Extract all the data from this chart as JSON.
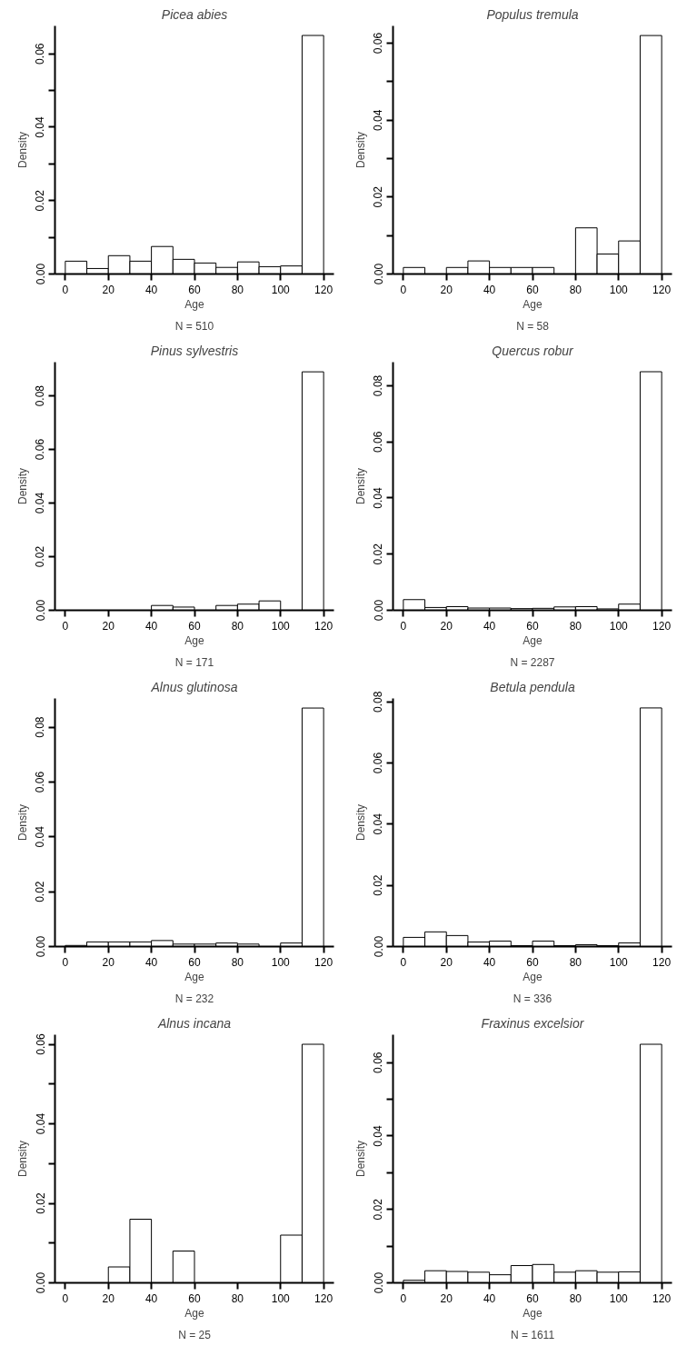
{
  "chart_data": [
    {
      "type": "histogram",
      "title": "Picea abies",
      "xlabel": "Age",
      "ylabel": "Density",
      "subtitle": "N = 510",
      "bins": [
        0,
        10,
        20,
        30,
        40,
        50,
        60,
        70,
        80,
        90,
        100,
        110,
        120
      ],
      "values": [
        0.0035,
        0.0015,
        0.005,
        0.0035,
        0.0075,
        0.004,
        0.003,
        0.0018,
        0.0033,
        0.002,
        0.0022,
        0.065
      ],
      "color": "#ffffff",
      "xlim": [
        -4.8,
        124.8
      ],
      "ylim": [
        0,
        0.0676
      ],
      "xticks": [
        0,
        20,
        40,
        60,
        80,
        100,
        120
      ],
      "yticks": [
        {
          "value": 0,
          "label": "0.00"
        },
        {
          "value": 0.01,
          "label": null
        },
        0.02,
        {
          "value": 0.03,
          "label": null
        },
        0.04,
        {
          "value": 0.05,
          "label": null
        },
        0.06
      ],
      "grid": false
    },
    {
      "type": "histogram",
      "title": "Populus tremula",
      "xlabel": "Age",
      "ylabel": "Density",
      "subtitle": "N = 58",
      "bins": [
        0,
        10,
        20,
        30,
        40,
        50,
        60,
        70,
        80,
        90,
        100,
        110,
        120
      ],
      "values": [
        0.0017,
        0,
        0.0017,
        0.0034,
        0.0017,
        0.0017,
        0.0017,
        0,
        0.012,
        0.0052,
        0.0086,
        0.062
      ],
      "color": "#ffffff",
      "xlim": [
        -4.8,
        124.8
      ],
      "ylim": [
        0,
        0.0645
      ],
      "xticks": [
        0,
        20,
        40,
        60,
        80,
        100,
        120
      ],
      "yticks": [
        {
          "value": 0,
          "label": "0.00"
        },
        {
          "value": 0.01,
          "label": null
        },
        0.02,
        {
          "value": 0.03,
          "label": null
        },
        0.04,
        {
          "value": 0.05,
          "label": null
        },
        0.06
      ],
      "grid": false
    },
    {
      "type": "histogram",
      "title": "Pinus sylvestris",
      "xlabel": "Age",
      "ylabel": "Density",
      "subtitle": "N = 171",
      "bins": [
        0,
        10,
        20,
        30,
        40,
        50,
        60,
        70,
        80,
        90,
        100,
        110,
        120
      ],
      "values": [
        0,
        0,
        0,
        0,
        0.0018,
        0.0012,
        0,
        0.0018,
        0.0023,
        0.0035,
        0,
        0.089
      ],
      "color": "#ffffff",
      "xlim": [
        -4.8,
        124.8
      ],
      "ylim": [
        0,
        0.0926
      ],
      "xticks": [
        0,
        20,
        40,
        60,
        80,
        100,
        120
      ],
      "yticks": [
        {
          "value": 0,
          "label": "0.00"
        },
        0.02,
        0.04,
        0.06,
        0.08
      ],
      "grid": false
    },
    {
      "type": "histogram",
      "title": "Quercus robur",
      "xlabel": "Age",
      "ylabel": "Density",
      "subtitle": "N = 2287",
      "bins": [
        0,
        10,
        20,
        30,
        40,
        50,
        60,
        70,
        80,
        90,
        100,
        110,
        120
      ],
      "values": [
        0.0038,
        0.001,
        0.0013,
        0.0008,
        0.0008,
        0.0006,
        0.0007,
        0.0012,
        0.0013,
        0.0005,
        0.0022,
        0.085
      ],
      "color": "#ffffff",
      "xlim": [
        -4.8,
        124.8
      ],
      "ylim": [
        0,
        0.0884
      ],
      "xticks": [
        0,
        20,
        40,
        60,
        80,
        100,
        120
      ],
      "yticks": [
        {
          "value": 0,
          "label": "0.00"
        },
        0.02,
        0.04,
        0.06,
        0.08
      ],
      "grid": false
    },
    {
      "type": "histogram",
      "title": "Alnus glutinosa",
      "xlabel": "Age",
      "ylabel": "Density",
      "subtitle": "N = 232",
      "bins": [
        0,
        10,
        20,
        30,
        40,
        50,
        60,
        70,
        80,
        90,
        100,
        110,
        120
      ],
      "values": [
        0.0004,
        0.0017,
        0.0017,
        0.0017,
        0.0022,
        0.0009,
        0.0009,
        0.0013,
        0.0009,
        0,
        0.0013,
        0.087
      ],
      "color": "#ffffff",
      "xlim": [
        -4.8,
        124.8
      ],
      "ylim": [
        0,
        0.0905
      ],
      "xticks": [
        0,
        20,
        40,
        60,
        80,
        100,
        120
      ],
      "yticks": [
        {
          "value": 0,
          "label": "0.00"
        },
        0.02,
        0.04,
        0.06,
        0.08
      ],
      "grid": false
    },
    {
      "type": "histogram",
      "title": "Betula pendula",
      "xlabel": "Age",
      "ylabel": "Density",
      "subtitle": "N = 336",
      "bins": [
        0,
        10,
        20,
        30,
        40,
        50,
        60,
        70,
        80,
        90,
        100,
        110,
        120
      ],
      "values": [
        0.003,
        0.0048,
        0.0036,
        0.0015,
        0.0018,
        0.0003,
        0.0018,
        0.0003,
        0.0006,
        0.0003,
        0.0012,
        0.078
      ],
      "color": "#ffffff",
      "xlim": [
        -4.8,
        124.8
      ],
      "ylim": [
        0,
        0.0811
      ],
      "xticks": [
        0,
        20,
        40,
        60,
        80,
        100,
        120
      ],
      "yticks": [
        {
          "value": 0,
          "label": "0.00"
        },
        0.02,
        0.04,
        0.06,
        0.08
      ],
      "grid": false
    },
    {
      "type": "histogram",
      "title": "Alnus incana",
      "xlabel": "Age",
      "ylabel": "Density",
      "subtitle": "N = 25",
      "bins": [
        0,
        10,
        20,
        30,
        40,
        50,
        60,
        70,
        80,
        90,
        100,
        110,
        120
      ],
      "values": [
        0,
        0,
        0.004,
        0.016,
        0,
        0.008,
        0,
        0,
        0,
        0,
        0.012,
        0.06
      ],
      "color": "#ffffff",
      "xlim": [
        -4.8,
        124.8
      ],
      "ylim": [
        0,
        0.0624
      ],
      "xticks": [
        0,
        20,
        40,
        60,
        80,
        100,
        120
      ],
      "yticks": [
        {
          "value": 0,
          "label": "0.00"
        },
        {
          "value": 0.01,
          "label": null
        },
        0.02,
        {
          "value": 0.03,
          "label": null
        },
        0.04,
        {
          "value": 0.05,
          "label": null
        },
        0.06
      ],
      "grid": false
    },
    {
      "type": "histogram",
      "title": "Fraxinus excelsior",
      "xlabel": "Age",
      "ylabel": "Density",
      "subtitle": "N = 1611",
      "bins": [
        0,
        10,
        20,
        30,
        40,
        50,
        60,
        70,
        80,
        90,
        100,
        110,
        120
      ],
      "values": [
        0.0007,
        0.0033,
        0.0031,
        0.0029,
        0.0022,
        0.0047,
        0.005,
        0.0029,
        0.0033,
        0.0029,
        0.003,
        0.065
      ],
      "color": "#ffffff",
      "xlim": [
        -4.8,
        124.8
      ],
      "ylim": [
        0,
        0.0676
      ],
      "xticks": [
        0,
        20,
        40,
        60,
        80,
        100,
        120
      ],
      "yticks": [
        {
          "value": 0,
          "label": "0.00"
        },
        {
          "value": 0.01,
          "label": null
        },
        0.02,
        {
          "value": 0.03,
          "label": null
        },
        0.04,
        {
          "value": 0.05,
          "label": null
        },
        0.06
      ],
      "grid": false
    }
  ]
}
